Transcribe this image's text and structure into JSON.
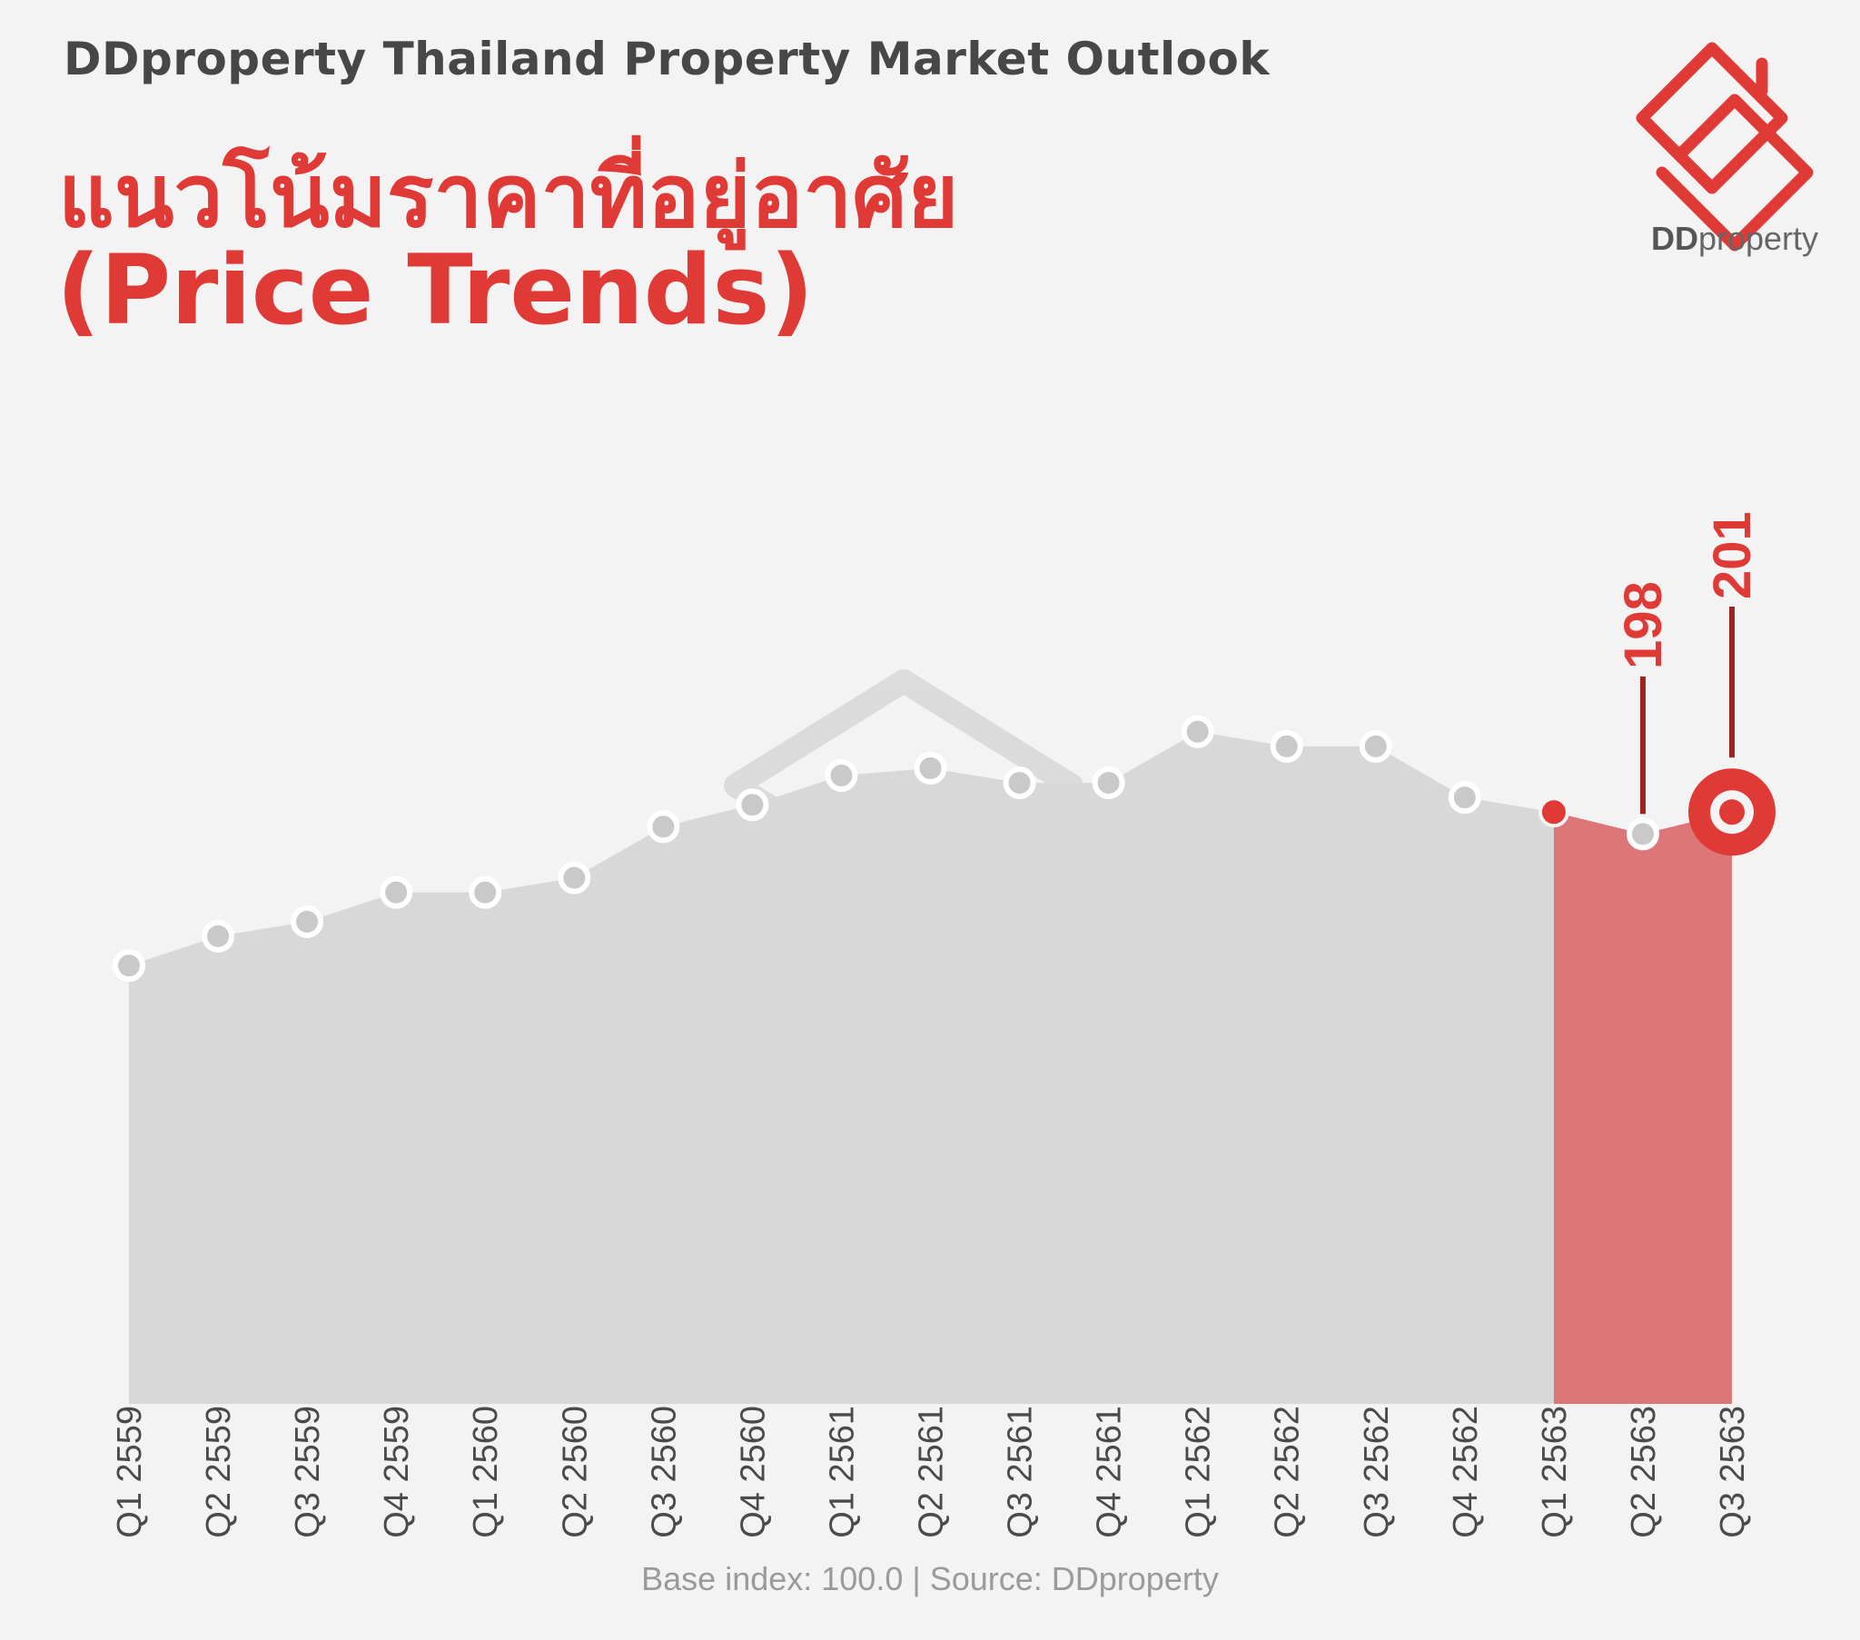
{
  "header": {
    "subtitle": "DDproperty Thailand Property Market Outlook",
    "title_th": "แนวโน้มราคาที่อยู่อาศัย",
    "title_en": "(Price Trends)"
  },
  "logo": {
    "text_bold": "DD",
    "text_rest": "property"
  },
  "footer": {
    "note": "Base index: 100.0 | Source: DDproperty"
  },
  "colors": {
    "accent": "#e03a36",
    "area_grey": "#d8d8d8",
    "area_red": "#dc7679",
    "background": "#f3f3f3"
  },
  "chart_data": {
    "type": "area",
    "categories": [
      "Q1 2559",
      "Q2 2559",
      "Q3 2559",
      "Q4 2559",
      "Q1 2560",
      "Q2 2560",
      "Q3 2560",
      "Q4 2560",
      "Q1 2561",
      "Q2 2561",
      "Q3 2561",
      "Q4 2561",
      "Q1 2562",
      "Q2 2562",
      "Q3 2562",
      "Q4 2562",
      "Q1 2563",
      "Q2 2563",
      "Q3 2563"
    ],
    "values": [
      180,
      184,
      186,
      190,
      190,
      192,
      199,
      202,
      206,
      207,
      205,
      205,
      212,
      210,
      210,
      203,
      201,
      198,
      201
    ],
    "highlight_from_index": 16,
    "labels": [
      {
        "index": 17,
        "text": "198"
      },
      {
        "index": 18,
        "text": "201"
      }
    ],
    "ylim": [
      120,
      250
    ],
    "grid": false,
    "legend": "none"
  }
}
